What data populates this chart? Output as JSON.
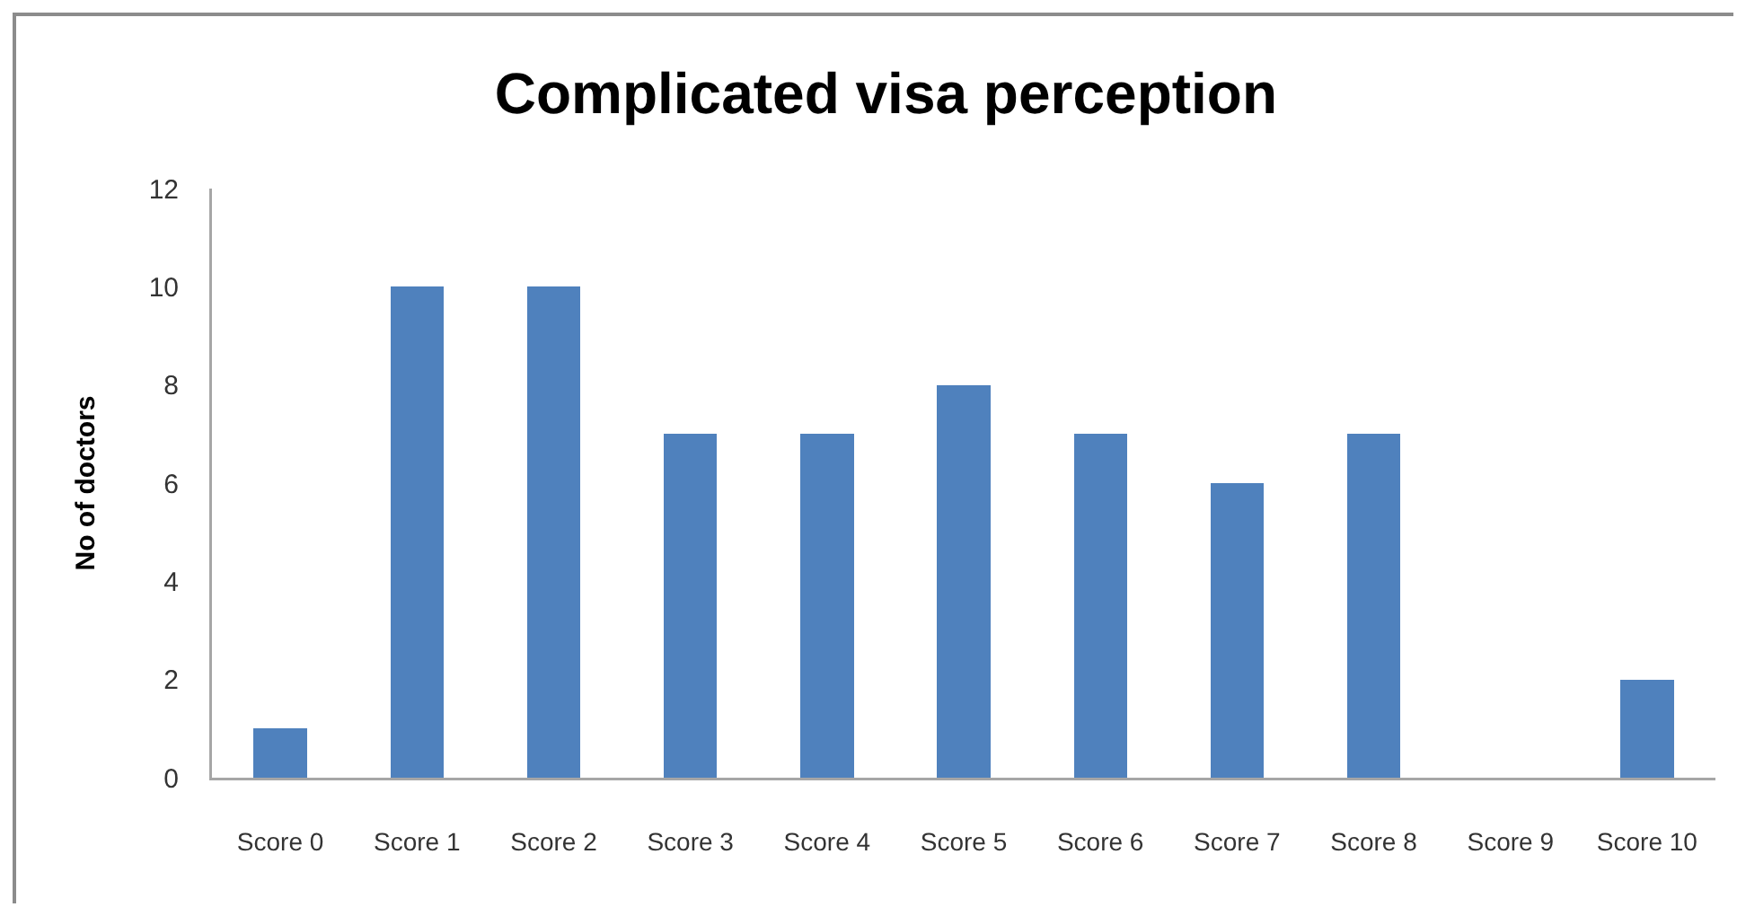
{
  "chart_data": {
    "type": "bar",
    "title": "Complicated visa perception",
    "ylabel": "No of doctors",
    "categories": [
      "Score 0",
      "Score 1",
      "Score 2",
      "Score 3",
      "Score 4",
      "Score 5",
      "Score 6",
      "Score 7",
      "Score 8",
      "Score 9",
      "Score 10"
    ],
    "values": [
      1,
      10,
      10,
      7,
      7,
      8,
      7,
      6,
      7,
      0,
      2
    ],
    "color": "#4f81bd",
    "ylim": [
      0,
      12
    ],
    "yticks": [
      0,
      2,
      4,
      6,
      8,
      10,
      12
    ]
  }
}
